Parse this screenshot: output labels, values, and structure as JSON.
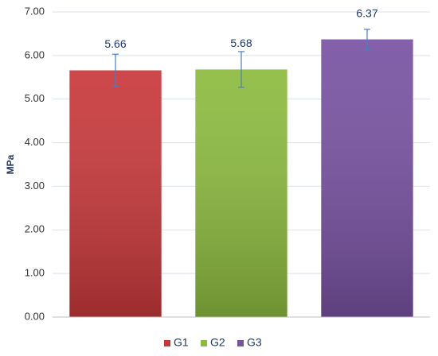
{
  "chart_data": {
    "type": "bar",
    "y_label": "MPa",
    "categories": [
      null
    ],
    "series": [
      {
        "name": "G1",
        "color": "#c8383a",
        "values": [
          5.66
        ],
        "errors": [
          0.37
        ]
      },
      {
        "name": "G2",
        "color": "#8cbb3f",
        "values": [
          5.68
        ],
        "errors": [
          0.41
        ]
      },
      {
        "name": "G3",
        "color": "#7852a2",
        "values": [
          6.37
        ],
        "errors": [
          0.23
        ]
      }
    ],
    "ylim": [
      0,
      7
    ],
    "yticks": [
      {
        "value": 0,
        "label": "0.00"
      },
      {
        "value": 1,
        "label": "1.00"
      },
      {
        "value": 2,
        "label": "2.00"
      },
      {
        "value": 3,
        "label": "3.00"
      },
      {
        "value": 4,
        "label": "4.00"
      },
      {
        "value": 5,
        "label": "5.00"
      },
      {
        "value": 6,
        "label": "6.00"
      },
      {
        "value": 7,
        "label": "7.00"
      }
    ],
    "grid": true,
    "error_color": "#4a7fc1",
    "legend": "bottom"
  }
}
